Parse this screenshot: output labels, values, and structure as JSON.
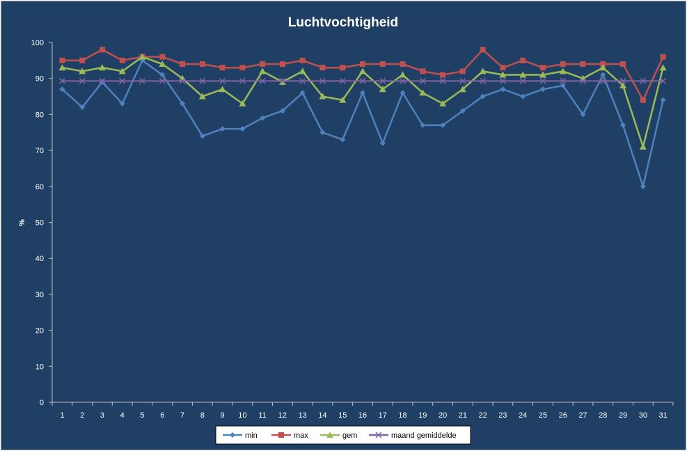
{
  "colors": {
    "background": "#1f4064",
    "border": "#ffffff",
    "axis": "#c0c0c0",
    "legend_bg": "#ffffff",
    "legend_border": "#000000"
  },
  "chart_data": {
    "type": "line",
    "title": "Luchtvochtigheid",
    "xlabel": "",
    "ylabel": "%",
    "ylim": [
      0,
      100
    ],
    "yticks": [
      0,
      10,
      20,
      30,
      40,
      50,
      60,
      70,
      80,
      90,
      100
    ],
    "grid": false,
    "legend_position": "bottom",
    "categories": [
      "1",
      "2",
      "3",
      "4",
      "5",
      "6",
      "7",
      "8",
      "9",
      "10",
      "11",
      "12",
      "13",
      "14",
      "15",
      "16",
      "17",
      "18",
      "19",
      "20",
      "21",
      "22",
      "23",
      "24",
      "25",
      "26",
      "27",
      "28",
      "29",
      "30",
      "31"
    ],
    "series": [
      {
        "name": "min",
        "color": "#4f81bd",
        "marker": "diamond",
        "values": [
          87,
          82,
          89,
          83,
          95,
          91,
          83,
          74,
          76,
          76,
          79,
          81,
          86,
          75,
          73,
          86,
          72,
          86,
          77,
          77,
          81,
          85,
          87,
          85,
          87,
          88,
          80,
          91,
          77,
          60,
          84
        ]
      },
      {
        "name": "max",
        "color": "#c0504d",
        "marker": "square",
        "values": [
          95,
          95,
          98,
          95,
          96,
          96,
          94,
          94,
          93,
          93,
          94,
          94,
          95,
          93,
          93,
          94,
          94,
          94,
          92,
          91,
          92,
          98,
          93,
          95,
          93,
          94,
          94,
          94,
          94,
          84,
          96
        ]
      },
      {
        "name": "gem",
        "color": "#9bbb59",
        "marker": "triangle",
        "values": [
          93,
          92,
          93,
          92,
          96,
          94,
          90,
          85,
          87,
          83,
          92,
          89,
          92,
          85,
          84,
          92,
          87,
          91,
          86,
          83,
          87,
          92,
          91,
          91,
          91,
          92,
          90,
          93,
          88,
          71,
          93
        ]
      },
      {
        "name": "maand gemiddelde",
        "color": "#8064a2",
        "marker": "x",
        "values": [
          89.3,
          89.3,
          89.3,
          89.3,
          89.3,
          89.3,
          89.3,
          89.3,
          89.3,
          89.3,
          89.3,
          89.3,
          89.3,
          89.3,
          89.3,
          89.3,
          89.3,
          89.3,
          89.3,
          89.3,
          89.3,
          89.3,
          89.3,
          89.3,
          89.3,
          89.3,
          89.3,
          89.3,
          89.3,
          89.3,
          89.3
        ]
      }
    ]
  }
}
